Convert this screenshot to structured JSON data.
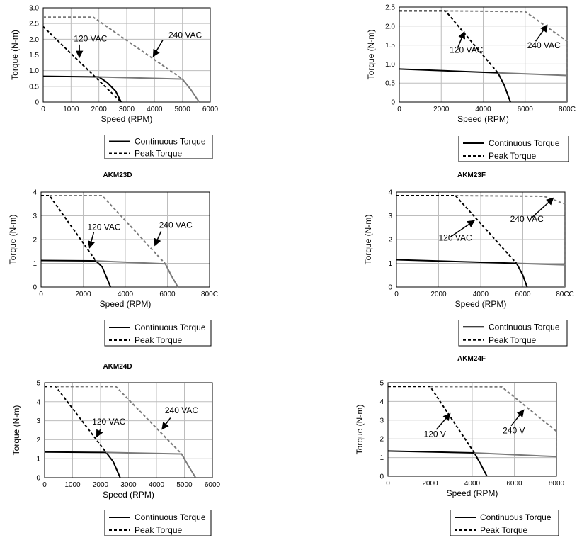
{
  "figure_titles": [
    "AKM23D",
    "AKM23F",
    "AKM24D",
    "AKM24F"
  ],
  "chart_data": [
    {
      "type": "line",
      "xlabel": "Speed (RPM)",
      "ylabel": "Torque (N-m)",
      "xlim": [
        0,
        6000
      ],
      "ylim": [
        0,
        3.0
      ],
      "grid": true,
      "xticks": [
        "0",
        "1000",
        "2000",
        "3000",
        "4000",
        "5000",
        "6000"
      ],
      "yticks": [
        "0",
        "0.5",
        "1.0",
        "1.5",
        "2.0",
        "2.5",
        "3.0"
      ],
      "legend": [
        "Continuous Torque",
        "Peak Torque"
      ],
      "series": [
        {
          "style": "cont120",
          "x": [
            0,
            2000,
            2300,
            2600,
            2800
          ],
          "y": [
            0.82,
            0.8,
            0.62,
            0.35,
            0
          ]
        },
        {
          "style": "cont240",
          "x": [
            2000,
            5000,
            5300,
            5600
          ],
          "y": [
            0.8,
            0.73,
            0.4,
            0
          ]
        },
        {
          "style": "peak120",
          "x": [
            0,
            2800
          ],
          "y": [
            2.4,
            0
          ]
        },
        {
          "style": "peak240",
          "x": [
            0,
            1800,
            5000
          ],
          "y": [
            2.7,
            2.7,
            0.73
          ]
        }
      ],
      "annotations": [
        {
          "text": "120 VAC",
          "x": 1100,
          "y": 1.93,
          "ax": 1300,
          "ay": 1.83,
          "tx": 1300,
          "ty": 1.42
        },
        {
          "text": "240 VAC",
          "x": 4500,
          "y": 2.04,
          "ax": 4300,
          "ay": 1.98,
          "tx": 3950,
          "ty": 1.45
        }
      ]
    },
    {
      "type": "line",
      "xlabel": "Speed (RPM)",
      "ylabel": "Torque (N-m)",
      "xlim": [
        0,
        8000
      ],
      "ylim": [
        0,
        2.5
      ],
      "grid": true,
      "xticks": [
        "0",
        "2000",
        "4000",
        "6000",
        "800C"
      ],
      "yticks": [
        "0",
        "0.5",
        "1.0",
        "1.5",
        "2.0",
        "2.5"
      ],
      "legend": [
        "Continuous Torque",
        "Peak Torque"
      ],
      "series": [
        {
          "style": "cont120",
          "x": [
            0,
            4700,
            5000,
            5300
          ],
          "y": [
            0.87,
            0.77,
            0.45,
            0
          ]
        },
        {
          "style": "cont240",
          "x": [
            4700,
            8000,
            8000
          ],
          "y": [
            0.77,
            0.7,
            0
          ]
        },
        {
          "style": "peak120",
          "x": [
            0,
            2200,
            4700
          ],
          "y": [
            2.4,
            2.4,
            0.77
          ]
        },
        {
          "style": "peak240",
          "x": [
            2200,
            6000,
            8000,
            8000
          ],
          "y": [
            2.4,
            2.38,
            1.6,
            0.7
          ]
        }
      ],
      "annotations": [
        {
          "text": "120 VAC",
          "x": 2400,
          "y": 1.3,
          "ax": 2800,
          "ay": 1.45,
          "tx": 3100,
          "ty": 1.85
        },
        {
          "text": "240 VAC",
          "x": 6100,
          "y": 1.42,
          "ax": 6500,
          "ay": 1.6,
          "tx": 7050,
          "ty": 2.03
        }
      ]
    },
    {
      "type": "line",
      "xlabel": "Speed (RPM)",
      "ylabel": "Torque (N-m)",
      "xlim": [
        0,
        8000
      ],
      "ylim": [
        0,
        4
      ],
      "grid": true,
      "xticks": [
        "0",
        "2000",
        "4000",
        "6000",
        "800C"
      ],
      "yticks": [
        "0",
        "1",
        "2",
        "3",
        "4"
      ],
      "legend": [
        "Continuous Torque",
        "Peak Torque"
      ],
      "series": [
        {
          "style": "cont120",
          "x": [
            0,
            2600,
            2900,
            3300
          ],
          "y": [
            1.12,
            1.1,
            0.85,
            0
          ]
        },
        {
          "style": "cont240",
          "x": [
            2600,
            5900,
            6200,
            6500
          ],
          "y": [
            1.1,
            0.98,
            0.45,
            0
          ]
        },
        {
          "style": "peak120",
          "x": [
            0,
            400,
            2600
          ],
          "y": [
            3.85,
            3.85,
            1.1
          ]
        },
        {
          "style": "peak240",
          "x": [
            400,
            2900,
            5900
          ],
          "y": [
            3.85,
            3.85,
            0.98
          ]
        }
      ],
      "annotations": [
        {
          "text": "120 VAC",
          "x": 2200,
          "y": 2.4,
          "ax": 2500,
          "ay": 2.3,
          "tx": 2300,
          "ty": 1.65
        },
        {
          "text": "240 VAC",
          "x": 5600,
          "y": 2.5,
          "ax": 5700,
          "ay": 2.35,
          "tx": 5400,
          "ty": 1.75
        }
      ]
    },
    {
      "type": "line",
      "xlabel": "Speed (RPM)",
      "ylabel": "Torque (N-m)",
      "xlim": [
        0,
        8000
      ],
      "ylim": [
        0,
        4
      ],
      "grid": true,
      "xticks": [
        "0",
        "2000",
        "4000",
        "6000",
        "80CC"
      ],
      "yticks": [
        "0",
        "1",
        "2",
        "3",
        "4"
      ],
      "legend": [
        "Continuous Torque",
        "Peak Torque"
      ],
      "series": [
        {
          "style": "cont120",
          "x": [
            0,
            5700,
            6000,
            6200
          ],
          "y": [
            1.15,
            1.0,
            0.5,
            0
          ]
        },
        {
          "style": "cont240",
          "x": [
            5700,
            8000,
            8000
          ],
          "y": [
            1.0,
            0.93,
            0
          ]
        },
        {
          "style": "peak120",
          "x": [
            0,
            2800,
            5700
          ],
          "y": [
            3.85,
            3.85,
            1.0
          ]
        },
        {
          "style": "peak240",
          "x": [
            2800,
            7000,
            8000,
            8000
          ],
          "y": [
            3.85,
            3.82,
            3.5,
            1.0
          ]
        }
      ],
      "annotations": [
        {
          "text": "120 VAC",
          "x": 2000,
          "y": 1.95,
          "ax": 2550,
          "ay": 2.1,
          "tx": 3700,
          "ty": 2.8
        },
        {
          "text": "240 VAC",
          "x": 5400,
          "y": 2.75,
          "ax": 6400,
          "ay": 2.9,
          "tx": 7450,
          "ty": 3.75
        }
      ]
    },
    {
      "type": "line",
      "xlabel": "Speed (RPM)",
      "ylabel": "Torque (N-m)",
      "xlim": [
        0,
        6000
      ],
      "ylim": [
        0,
        5
      ],
      "grid": true,
      "xticks": [
        "0",
        "1000",
        "2000",
        "3000",
        "4000",
        "5000",
        "6000"
      ],
      "yticks": [
        "0",
        "1",
        "2",
        "3",
        "4",
        "5"
      ],
      "legend": [
        "Continuous Torque",
        "Peak Torque"
      ],
      "series": [
        {
          "style": "cont120",
          "x": [
            0,
            2200,
            2450,
            2700
          ],
          "y": [
            1.35,
            1.33,
            0.85,
            0
          ]
        },
        {
          "style": "cont240",
          "x": [
            2200,
            4900,
            5150,
            5400
          ],
          "y": [
            1.33,
            1.25,
            0.6,
            0
          ]
        },
        {
          "style": "peak120",
          "x": [
            0,
            400,
            2200
          ],
          "y": [
            4.8,
            4.8,
            1.33
          ]
        },
        {
          "style": "peak240",
          "x": [
            400,
            2550,
            4900
          ],
          "y": [
            4.8,
            4.8,
            1.25
          ]
        }
      ],
      "annotations": [
        {
          "text": "120 VAC",
          "x": 1700,
          "y": 2.8,
          "ax": 2000,
          "ay": 2.55,
          "tx": 1860,
          "ty": 2.15
        },
        {
          "text": "240 VAC",
          "x": 4300,
          "y": 3.4,
          "ax": 4500,
          "ay": 3.15,
          "tx": 4200,
          "ty": 2.55
        }
      ]
    },
    {
      "type": "line",
      "xlabel": "Speed (RPM)",
      "ylabel": "Torque (N-m)",
      "xlim": [
        0,
        8000
      ],
      "ylim": [
        0,
        5
      ],
      "grid": true,
      "xticks": [
        "0",
        "2000",
        "4000",
        "6000",
        "8000"
      ],
      "yticks": [
        "0",
        "1",
        "2",
        "3",
        "4",
        "5"
      ],
      "legend": [
        "Continuous Torque",
        "Peak Torque"
      ],
      "series": [
        {
          "style": "cont120",
          "x": [
            0,
            4100,
            4400,
            4700
          ],
          "y": [
            1.35,
            1.25,
            0.65,
            0
          ]
        },
        {
          "style": "cont240",
          "x": [
            4100,
            8000,
            8000
          ],
          "y": [
            1.25,
            1.05,
            0
          ]
        },
        {
          "style": "peak120",
          "x": [
            0,
            2000,
            4100
          ],
          "y": [
            4.8,
            4.8,
            1.25
          ]
        },
        {
          "style": "peak240",
          "x": [
            2000,
            5400,
            8000,
            8000
          ],
          "y": [
            4.8,
            4.78,
            2.4,
            1.05
          ]
        }
      ],
      "annotations": [
        {
          "text": "120 V",
          "x": 1700,
          "y": 2.1,
          "ax": 2300,
          "ay": 2.5,
          "tx": 2950,
          "ty": 3.35
        },
        {
          "text": "240 V",
          "x": 5450,
          "y": 2.3,
          "ax": 5850,
          "ay": 2.7,
          "tx": 6450,
          "ty": 3.55
        }
      ]
    }
  ]
}
